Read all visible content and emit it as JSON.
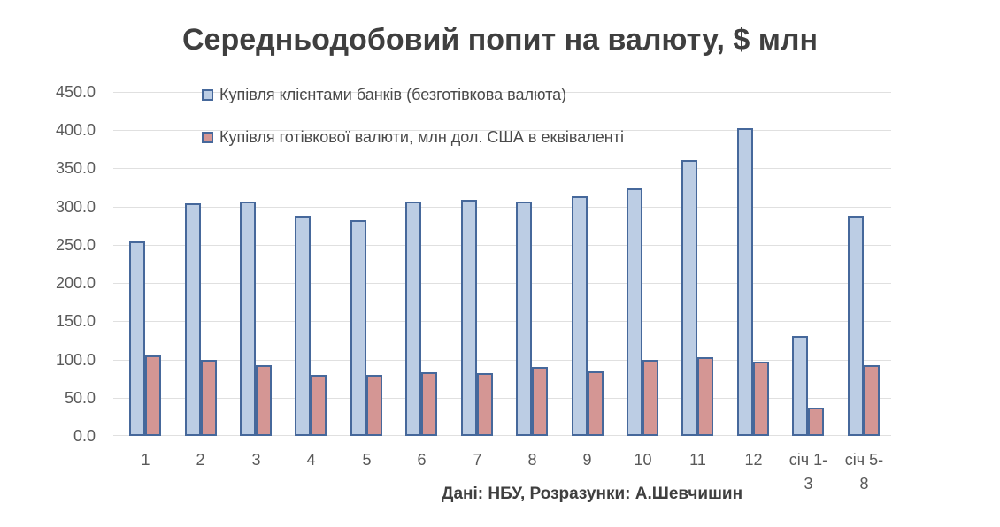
{
  "chart_data": {
    "type": "bar",
    "title": "Середньодобовий попит на валюту, $ млн",
    "caption": "Дані: НБУ, Розразунки: А.Шевчишин",
    "categories": [
      "1",
      "2",
      "3",
      "4",
      "5",
      "6",
      "7",
      "8",
      "9",
      "10",
      "11",
      "12",
      "січ 1-\n3",
      "січ 5-\n8"
    ],
    "series": [
      {
        "name": "Купівля клієнтами банків (безготівкова валюта)",
        "fill": "#bccde4",
        "border": "#46689b",
        "values": [
          254,
          304,
          307,
          288,
          282,
          306,
          309,
          306,
          313,
          324,
          361,
          403,
          131,
          288
        ]
      },
      {
        "name": "Купівля готівкової валюти, млн дол. США в еквіваленті",
        "fill": "#d49694",
        "border": "#46689b",
        "values": [
          105,
          100,
          93,
          80,
          80,
          83,
          82,
          90,
          85,
          100,
          103,
          97,
          37,
          93
        ]
      }
    ],
    "ylim": [
      0,
      450
    ],
    "ytick_step": 50,
    "ytick_labels": [
      "450.0",
      "400.0",
      "350.0",
      "300.0",
      "250.0",
      "200.0",
      "150.0",
      "100.0",
      "50.0",
      "0.0"
    ],
    "grid": true,
    "legend_position": "top-inside",
    "colors": {
      "grid": "#e0e0e0",
      "title_text": "#3f3f3f",
      "axis_text": "#595959",
      "legend_text": "#4a4a4a",
      "caption_text": "#3f3f3f",
      "background": "#ffffff"
    }
  }
}
